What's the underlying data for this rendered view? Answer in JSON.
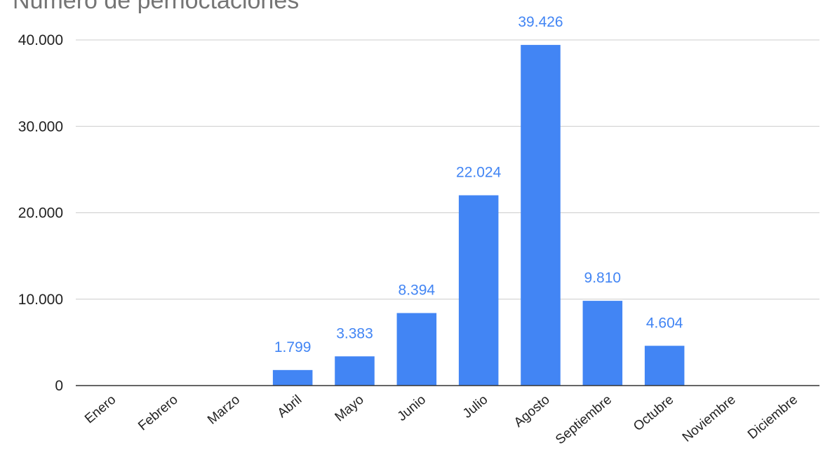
{
  "chart_data": {
    "type": "bar",
    "title": "Número de pernoctaciones",
    "xlabel": "",
    "ylabel": "",
    "categories": [
      "Enero",
      "Febrero",
      "Marzo",
      "Abril",
      "Mayo",
      "Junio",
      "Julio",
      "Agosto",
      "Septiembre",
      "Octubre",
      "Noviembre",
      "Diciembre"
    ],
    "values": [
      0,
      0,
      0,
      1799,
      3383,
      8394,
      22024,
      39426,
      9810,
      4604,
      0,
      0
    ],
    "data_labels": [
      "",
      "",
      "",
      "1.799",
      "3.383",
      "8.394",
      "22.024",
      "39.426",
      "9.810",
      "4.604",
      "",
      ""
    ],
    "ylim": [
      0,
      40000
    ],
    "yticks": [
      0,
      10000,
      20000,
      30000,
      40000
    ],
    "ytick_labels": [
      "0",
      "10.000",
      "20.000",
      "30.000",
      "40.000"
    ],
    "grid": true,
    "legend": "none",
    "bar_color": "#4285f4",
    "label_color": "#4285f4"
  }
}
